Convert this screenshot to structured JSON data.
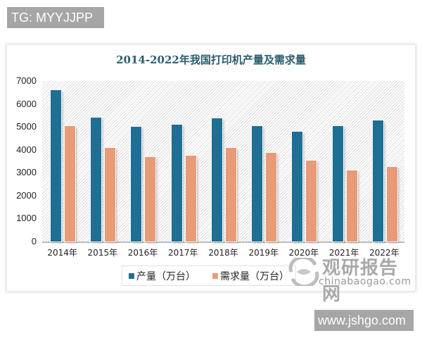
{
  "watermarks": {
    "top_tag": "TG: MYYJJPP",
    "bottom_tag": "www.jshgo.com",
    "brand_cn": "观研报告网",
    "brand_en": "chinabaogao.com"
  },
  "colors": {
    "production": "#1f6f94",
    "demand": "#e99b78",
    "title": "#2b5d6c"
  },
  "chart_data": {
    "type": "bar",
    "title": "2014-2022年我国打印机产量及需求量",
    "xlabel": "",
    "ylabel": "",
    "ylim": [
      0,
      7000
    ],
    "yticks": [
      0,
      1000,
      2000,
      3000,
      4000,
      5000,
      6000,
      7000
    ],
    "categories": [
      "2014年",
      "2015年",
      "2016年",
      "2017年",
      "2018年",
      "2019年",
      "2020年",
      "2021年",
      "2022年"
    ],
    "series": [
      {
        "name": "产量（万台）",
        "values": [
          6600,
          5400,
          5000,
          5100,
          5370,
          5030,
          4780,
          5030,
          5280
        ]
      },
      {
        "name": "需求量（万台）",
        "values": [
          5050,
          4070,
          3670,
          3740,
          4070,
          3860,
          3520,
          3090,
          3270
        ]
      }
    ],
    "legend_position": "bottom",
    "grid": false
  }
}
